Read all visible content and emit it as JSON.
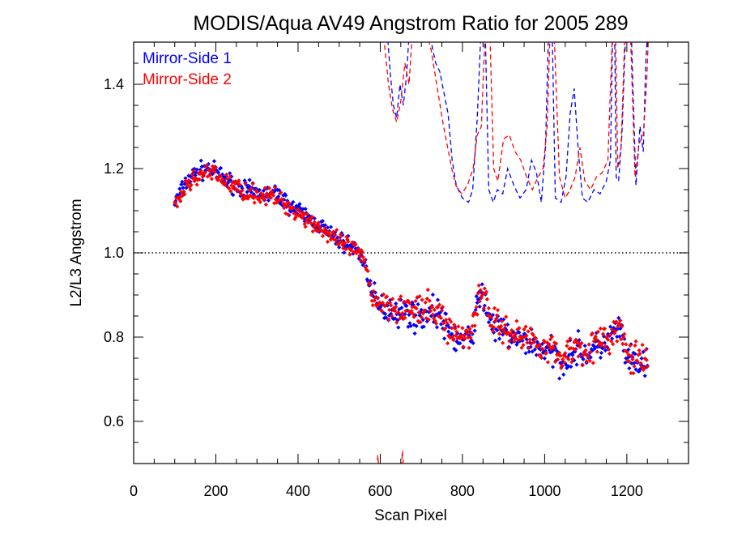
{
  "chart_data": {
    "type": "scatter",
    "title": "MODIS/Aqua AV49 Angstrom Ratio for 2005 289",
    "xlabel": "Scan Pixel",
    "ylabel": "L2/L3 Angstrom",
    "xlim": [
      0,
      1350
    ],
    "ylim": [
      0.5,
      1.5
    ],
    "xticks": [
      0,
      200,
      400,
      600,
      800,
      1000,
      1200
    ],
    "xtick_labels": [
      "0",
      "200",
      "400",
      "600",
      "800",
      "1000",
      "1200"
    ],
    "yticks": [
      0.6,
      0.8,
      1.0,
      1.2,
      1.4
    ],
    "ytick_labels": [
      "0.6",
      "0.8",
      "1.0",
      "1.2",
      "1.4"
    ],
    "x_minor_step": 50,
    "y_minor_step": 0.05,
    "reference_line": {
      "y": 1.0,
      "style": "dotted",
      "color": "#000000"
    },
    "legend_position": "top-left",
    "series": [
      {
        "name": "Mirror-Side 1",
        "color": "#0000ff",
        "marker": "diamond",
        "profile_x": [
          100,
          130,
          150,
          180,
          200,
          230,
          260,
          290,
          320,
          350,
          370,
          400,
          430,
          460,
          480,
          500,
          520,
          540,
          560,
          570,
          580,
          590,
          600,
          620,
          650,
          680,
          700,
          720,
          740,
          760,
          780,
          800,
          820,
          840,
          850,
          860,
          880,
          900,
          920,
          940,
          960,
          980,
          1000,
          1020,
          1040,
          1060,
          1080,
          1100,
          1120,
          1140,
          1160,
          1180,
          1190,
          1200,
          1220,
          1240,
          1250
        ],
        "profile_y": [
          1.12,
          1.17,
          1.19,
          1.2,
          1.19,
          1.17,
          1.155,
          1.145,
          1.14,
          1.14,
          1.12,
          1.1,
          1.08,
          1.06,
          1.04,
          1.03,
          1.02,
          1.01,
          0.98,
          0.95,
          0.9,
          0.88,
          0.87,
          0.87,
          0.86,
          0.855,
          0.85,
          0.86,
          0.86,
          0.82,
          0.8,
          0.79,
          0.8,
          0.89,
          0.9,
          0.86,
          0.82,
          0.81,
          0.8,
          0.79,
          0.79,
          0.78,
          0.77,
          0.76,
          0.74,
          0.76,
          0.77,
          0.76,
          0.77,
          0.78,
          0.8,
          0.82,
          0.8,
          0.74,
          0.74,
          0.73,
          0.73
        ],
        "point_spacing": 2,
        "noise": 0.018
      },
      {
        "name": "Mirror-Side 2",
        "color": "#ff0000",
        "marker": "diamond",
        "profile_x": [
          100,
          130,
          150,
          180,
          200,
          230,
          260,
          290,
          320,
          350,
          370,
          400,
          430,
          460,
          480,
          500,
          520,
          540,
          560,
          570,
          580,
          590,
          600,
          620,
          650,
          680,
          700,
          720,
          740,
          760,
          780,
          800,
          820,
          840,
          850,
          860,
          880,
          900,
          920,
          940,
          960,
          980,
          1000,
          1020,
          1040,
          1060,
          1080,
          1100,
          1120,
          1140,
          1160,
          1180,
          1190,
          1200,
          1220,
          1240,
          1250
        ],
        "profile_y": [
          1.11,
          1.16,
          1.18,
          1.19,
          1.185,
          1.165,
          1.15,
          1.14,
          1.135,
          1.13,
          1.115,
          1.095,
          1.075,
          1.055,
          1.035,
          1.025,
          1.015,
          1.005,
          0.98,
          0.95,
          0.9,
          0.89,
          0.88,
          0.88,
          0.87,
          0.865,
          0.86,
          0.865,
          0.86,
          0.83,
          0.81,
          0.8,
          0.81,
          0.9,
          0.91,
          0.87,
          0.83,
          0.82,
          0.81,
          0.8,
          0.8,
          0.79,
          0.78,
          0.77,
          0.75,
          0.77,
          0.78,
          0.77,
          0.78,
          0.79,
          0.8,
          0.82,
          0.81,
          0.75,
          0.75,
          0.74,
          0.74
        ],
        "point_spacing": 2,
        "noise": 0.018
      }
    ],
    "dashed_series": [
      {
        "name": "Mirror-Side 1 (dashed)",
        "color": "#0000ff",
        "x": [
          605,
          615,
          625,
          632,
          640,
          648,
          656,
          664,
          672,
          680,
          690,
          700,
          712,
          724,
          735,
          745,
          755,
          765,
          775,
          785,
          800,
          815,
          825,
          836,
          846,
          855,
          864,
          875,
          885,
          898,
          910,
          925,
          940,
          955,
          968,
          980,
          992,
          1002,
          1010,
          1018,
          1026,
          1040,
          1052,
          1062,
          1072,
          1082,
          1092,
          1105,
          1120,
          1135,
          1150,
          1160,
          1166,
          1170,
          1174,
          1180,
          1188,
          1198,
          1210,
          1222,
          1232,
          1240,
          1246,
          1252
        ],
        "y": [
          1.52,
          1.55,
          1.42,
          1.35,
          1.32,
          1.4,
          1.35,
          1.42,
          1.55,
          1.55,
          1.55,
          1.55,
          1.55,
          1.5,
          1.45,
          1.43,
          1.38,
          1.33,
          1.22,
          1.16,
          1.13,
          1.12,
          1.15,
          1.32,
          1.55,
          1.55,
          1.15,
          1.12,
          1.15,
          1.14,
          1.2,
          1.16,
          1.13,
          1.15,
          1.22,
          1.19,
          1.12,
          1.25,
          1.55,
          1.55,
          1.13,
          1.12,
          1.18,
          1.33,
          1.39,
          1.24,
          1.13,
          1.12,
          1.15,
          1.14,
          1.17,
          1.22,
          1.55,
          1.55,
          1.18,
          1.17,
          1.28,
          1.55,
          1.55,
          1.16,
          1.3,
          1.24,
          1.45,
          1.55
        ]
      },
      {
        "name": "Mirror-Side 2 (dashed)",
        "color": "#ff0000",
        "x": [
          603,
          612,
          620,
          630,
          640,
          650,
          660,
          670,
          680,
          690,
          700,
          712,
          724,
          734,
          744,
          754,
          764,
          774,
          784,
          798,
          812,
          826,
          836,
          846,
          856,
          866,
          876,
          886,
          900,
          914,
          928,
          942,
          956,
          970,
          984,
          996,
          1006,
          1014,
          1022,
          1036,
          1050,
          1062,
          1074,
          1086,
          1098,
          1112,
          1126,
          1140,
          1154,
          1166,
          1172,
          1178,
          1186,
          1196,
          1208,
          1220,
          1230,
          1240,
          1248,
          1254
        ],
        "y": [
          1.55,
          1.48,
          1.4,
          1.34,
          1.31,
          1.36,
          1.45,
          1.4,
          1.55,
          1.55,
          1.55,
          1.53,
          1.48,
          1.42,
          1.36,
          1.3,
          1.25,
          1.2,
          1.16,
          1.14,
          1.16,
          1.2,
          1.28,
          1.3,
          1.55,
          1.55,
          1.2,
          1.17,
          1.27,
          1.28,
          1.24,
          1.22,
          1.18,
          1.15,
          1.18,
          1.2,
          1.3,
          1.55,
          1.55,
          1.18,
          1.13,
          1.15,
          1.18,
          1.25,
          1.17,
          1.15,
          1.18,
          1.19,
          1.22,
          1.55,
          1.55,
          1.2,
          1.25,
          1.55,
          1.55,
          1.18,
          1.26,
          1.28,
          1.4,
          1.55
        ]
      },
      {
        "name": "Mirror-Side 2 (dashed, low)",
        "color": "#ff0000",
        "x": [
          590,
          594,
          598,
          650,
          654,
          658
        ],
        "y": [
          0.47,
          0.52,
          0.47,
          0.47,
          0.53,
          0.47
        ]
      }
    ]
  }
}
